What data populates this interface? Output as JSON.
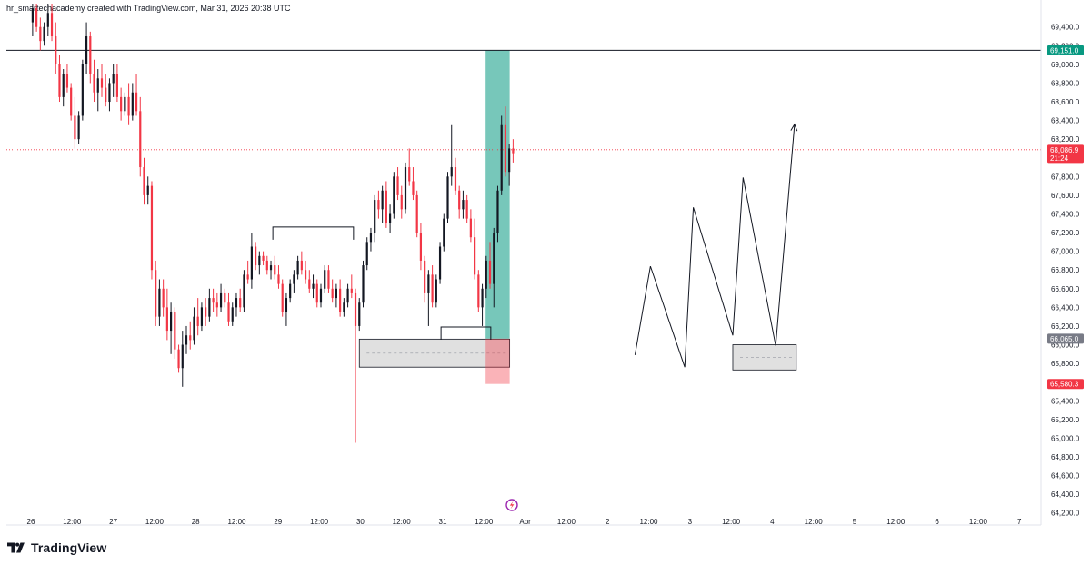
{
  "header": {
    "text": "hr_smartechacademy created with TradingView.com, Mar 31, 2026 20:38 UTC"
  },
  "branding": {
    "label": "TradingView"
  },
  "chart_data": {
    "type": "candlestick",
    "price_axis": {
      "ylim": [
        64100,
        69650
      ],
      "ticks": [
        "69,400.0",
        "69,200.0",
        "69,000.0",
        "68,800.0",
        "68,600.0",
        "68,400.0",
        "68,200.0",
        "67,800.0",
        "67,600.0",
        "67,400.0",
        "67,200.0",
        "67,000.0",
        "66,800.0",
        "66,600.0",
        "66,400.0",
        "66,200.0",
        "66,000.0",
        "65,800.0",
        "65,600.0",
        "65,400.0",
        "65,200.0",
        "65,000.0",
        "64,800.0",
        "64,600.0",
        "64,400.0",
        "64,200.0"
      ],
      "tick_values": [
        69400,
        69200,
        69000,
        68800,
        68600,
        68400,
        68200,
        67800,
        67600,
        67400,
        67200,
        67000,
        66800,
        66600,
        66400,
        66200,
        66000,
        65800,
        65600,
        65400,
        65200,
        65000,
        64800,
        64600,
        64400,
        64200
      ]
    },
    "time_axis": {
      "ticks": [
        "26",
        "12:00",
        "27",
        "12:00",
        "28",
        "12:00",
        "29",
        "12:00",
        "30",
        "12:00",
        "31",
        "12:00",
        "Apr",
        "12:00",
        "2",
        "12:00",
        "3",
        "12:00",
        "4",
        "12:00",
        "5",
        "12:00",
        "6",
        "12:00",
        "7"
      ],
      "tick_hours": [
        0,
        12,
        24,
        36,
        48,
        60,
        72,
        84,
        96,
        108,
        120,
        132,
        144,
        156,
        168,
        180,
        192,
        204,
        216,
        228,
        240,
        252,
        264,
        276,
        288
      ]
    },
    "price_tags": [
      {
        "label": "69,151.0",
        "value": 69151,
        "color": "#089981"
      },
      {
        "label": "68,086.9",
        "sublabel": "21:24",
        "value": 68086.9,
        "color": "#f23645"
      },
      {
        "label": "66,065.0",
        "value": 66065,
        "color": "#787b86"
      },
      {
        "label": "65,580.3",
        "value": 65580.3,
        "color": "#f23645"
      }
    ],
    "horizontal_lines": [
      {
        "value": 69151,
        "style": "solid",
        "color": "#131722"
      },
      {
        "value": 68086.9,
        "style": "dotted",
        "color": "#f23645"
      }
    ],
    "position": {
      "type": "long",
      "entry": 66065,
      "target": 69151,
      "stop": 65580.3,
      "start_hour": 132.5,
      "end_hour": 139.5
    },
    "zones": [
      {
        "from_hour": 95.7,
        "to_hour": 139.5,
        "low": 65760,
        "high": 66060,
        "color": "#e0e0e0"
      },
      {
        "from_hour": 204.5,
        "to_hour": 223,
        "low": 65730,
        "high": 66000,
        "color": "#e0e0e0"
      }
    ],
    "drawn_levels": [
      {
        "from_hour": 70.5,
        "to_hour": 94,
        "value": 67260
      },
      {
        "from_hour": 119.5,
        "to_hour": 134,
        "value": 66190
      }
    ],
    "projection_path": [
      [
        176,
        65890
      ],
      [
        180.5,
        66840
      ],
      [
        190.5,
        65760
      ],
      [
        193,
        67470
      ],
      [
        204.5,
        66100
      ],
      [
        207.5,
        67790
      ],
      [
        217,
        65990
      ],
      [
        222.5,
        68360
      ]
    ],
    "candles": [
      [
        69450,
        69650,
        69300,
        69600
      ],
      [
        69600,
        69650,
        69350,
        69400
      ],
      [
        69400,
        69500,
        69150,
        69250
      ],
      [
        69250,
        69450,
        69200,
        69400
      ],
      [
        69400,
        69650,
        69300,
        69550
      ],
      [
        69550,
        69650,
        69250,
        69300
      ],
      [
        69300,
        69450,
        68900,
        69000
      ],
      [
        69000,
        69100,
        68600,
        68650
      ],
      [
        68650,
        68950,
        68550,
        68900
      ],
      [
        68900,
        69000,
        68700,
        68750
      ],
      [
        68750,
        68800,
        68400,
        68450
      ],
      [
        68450,
        68650,
        68100,
        68200
      ],
      [
        68200,
        68500,
        68150,
        68450
      ],
      [
        68450,
        69050,
        68400,
        69000
      ],
      [
        69000,
        69450,
        68900,
        69300
      ],
      [
        69300,
        69350,
        68800,
        68900
      ],
      [
        68900,
        69050,
        68600,
        68700
      ],
      [
        68700,
        68950,
        68500,
        68850
      ],
      [
        68850,
        69000,
        68650,
        68750
      ],
      [
        68750,
        68900,
        68550,
        68600
      ],
      [
        68600,
        68850,
        68500,
        68800
      ],
      [
        68800,
        69000,
        68650,
        68900
      ],
      [
        68900,
        69000,
        68600,
        68650
      ],
      [
        68650,
        68750,
        68400,
        68500
      ],
      [
        68500,
        68700,
        68450,
        68650
      ],
      [
        68650,
        68800,
        68350,
        68450
      ],
      [
        68450,
        68800,
        68400,
        68700
      ],
      [
        68700,
        68900,
        68450,
        68500
      ],
      [
        68500,
        68650,
        67800,
        67900
      ],
      [
        67900,
        68000,
        67500,
        67600
      ],
      [
        67600,
        67800,
        67500,
        67700
      ],
      [
        67700,
        67750,
        66700,
        66800
      ],
      [
        66800,
        66900,
        66200,
        66300
      ],
      [
        66300,
        66700,
        66200,
        66600
      ],
      [
        66600,
        66700,
        66300,
        66400
      ],
      [
        66400,
        66600,
        66050,
        66150
      ],
      [
        66150,
        66450,
        65900,
        66350
      ],
      [
        66350,
        66400,
        65850,
        65950
      ],
      [
        65950,
        66000,
        65700,
        65750
      ],
      [
        65750,
        66150,
        65550,
        66000
      ],
      [
        66000,
        66200,
        65900,
        66100
      ],
      [
        66100,
        66250,
        65950,
        66050
      ],
      [
        66050,
        66400,
        66000,
        66300
      ],
      [
        66300,
        66500,
        66100,
        66200
      ],
      [
        66200,
        66450,
        66150,
        66400
      ],
      [
        66400,
        66500,
        66200,
        66300
      ],
      [
        66300,
        66600,
        66250,
        66500
      ],
      [
        66500,
        66600,
        66350,
        66450
      ],
      [
        66450,
        66550,
        66300,
        66400
      ],
      [
        66400,
        66650,
        66350,
        66550
      ],
      [
        66550,
        66600,
        66400,
        66450
      ],
      [
        66450,
        66550,
        66200,
        66250
      ],
      [
        66250,
        66450,
        66200,
        66400
      ],
      [
        66400,
        66550,
        66300,
        66500
      ],
      [
        66500,
        66600,
        66350,
        66400
      ],
      [
        66400,
        66800,
        66350,
        66750
      ],
      [
        66750,
        66900,
        66650,
        66700
      ],
      [
        66700,
        67200,
        66600,
        67050
      ],
      [
        67050,
        67100,
        66800,
        66850
      ],
      [
        66850,
        67000,
        66750,
        66950
      ],
      [
        66950,
        67000,
        66850,
        66900
      ],
      [
        66900,
        66950,
        66750,
        66800
      ],
      [
        66800,
        66900,
        66700,
        66850
      ],
      [
        66850,
        66950,
        66700,
        66750
      ],
      [
        66750,
        66850,
        66600,
        66650
      ],
      [
        66650,
        66700,
        66300,
        66350
      ],
      [
        66350,
        66550,
        66200,
        66500
      ],
      [
        66500,
        66700,
        66450,
        66650
      ],
      [
        66650,
        66800,
        66550,
        66750
      ],
      [
        66750,
        66950,
        66700,
        66900
      ],
      [
        66900,
        67000,
        66750,
        66800
      ],
      [
        66800,
        66900,
        66650,
        66700
      ],
      [
        66700,
        66800,
        66550,
        66600
      ],
      [
        66600,
        66750,
        66500,
        66650
      ],
      [
        66650,
        66700,
        66400,
        66450
      ],
      [
        66450,
        66650,
        66400,
        66600
      ],
      [
        66600,
        66850,
        66550,
        66800
      ],
      [
        66800,
        66850,
        66550,
        66600
      ],
      [
        66600,
        66700,
        66450,
        66500
      ],
      [
        66500,
        66650,
        66400,
        66600
      ],
      [
        66600,
        66700,
        66300,
        66350
      ],
      [
        66350,
        66500,
        66300,
        66450
      ],
      [
        66450,
        66650,
        66400,
        66600
      ],
      [
        66600,
        66750,
        66500,
        66550
      ],
      [
        66550,
        66600,
        64950,
        66200
      ],
      [
        66200,
        66500,
        66150,
        66450
      ],
      [
        66450,
        66900,
        66400,
        66850
      ],
      [
        66850,
        67150,
        66800,
        67100
      ],
      [
        67100,
        67250,
        67000,
        67200
      ],
      [
        67200,
        67600,
        67100,
        67550
      ],
      [
        67550,
        67650,
        67350,
        67450
      ],
      [
        67450,
        67700,
        67300,
        67650
      ],
      [
        67650,
        67750,
        67250,
        67300
      ],
      [
        67300,
        67500,
        67200,
        67400
      ],
      [
        67400,
        67850,
        67350,
        67800
      ],
      [
        67800,
        67900,
        67550,
        67600
      ],
      [
        67600,
        67700,
        67350,
        67450
      ],
      [
        67450,
        67950,
        67400,
        67900
      ],
      [
        67900,
        68100,
        67700,
        67750
      ],
      [
        67750,
        67900,
        67550,
        67600
      ],
      [
        67600,
        67650,
        67150,
        67200
      ],
      [
        67200,
        67300,
        66800,
        66900
      ],
      [
        66900,
        66950,
        66450,
        66550
      ],
      [
        66550,
        66800,
        66200,
        66750
      ],
      [
        66750,
        66850,
        66400,
        66450
      ],
      [
        66450,
        66750,
        66400,
        66700
      ],
      [
        66700,
        67100,
        66650,
        67050
      ],
      [
        67050,
        67400,
        67000,
        67350
      ],
      [
        67350,
        67850,
        67300,
        67800
      ],
      [
        67800,
        68350,
        67700,
        67900
      ],
      [
        67900,
        68000,
        67600,
        67650
      ],
      [
        67650,
        67700,
        67350,
        67450
      ],
      [
        67450,
        67650,
        67350,
        67550
      ],
      [
        67550,
        67600,
        67300,
        67350
      ],
      [
        67350,
        67450,
        67100,
        67150
      ],
      [
        67150,
        67350,
        66700,
        66750
      ],
      [
        66750,
        66800,
        66350,
        66400
      ],
      [
        66400,
        66650,
        66200,
        66600
      ],
      [
        66600,
        66950,
        66500,
        66900
      ],
      [
        66900,
        67100,
        66600,
        66650
      ],
      [
        66650,
        67250,
        66400,
        67200
      ],
      [
        67200,
        67700,
        67100,
        67650
      ],
      [
        67650,
        68450,
        67600,
        68350
      ],
      [
        68350,
        68550,
        67800,
        67850
      ],
      [
        67850,
        68150,
        67700,
        68100
      ],
      [
        68100,
        68200,
        67950,
        68050
      ]
    ]
  }
}
